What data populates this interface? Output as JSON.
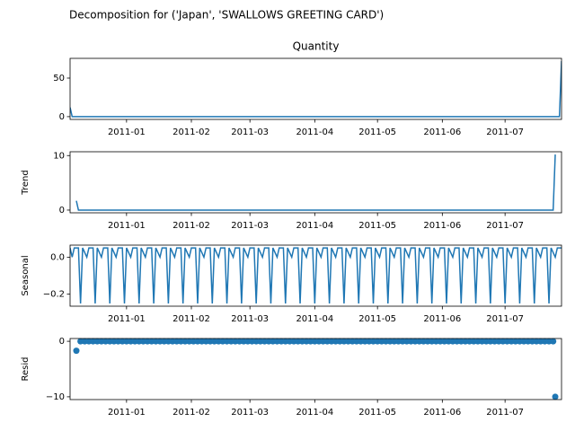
{
  "title": "Decomposition for ('Japan', 'SWALLOWS GREETING CARD')",
  "chart_data": [
    {
      "type": "line",
      "title": "Quantity",
      "color": "#1f77b4",
      "x": [
        0,
        1,
        234,
        235
      ],
      "values": [
        12,
        0,
        0,
        72
      ],
      "xlim": [
        0,
        235
      ],
      "xticks": [
        {
          "value": 27,
          "label": "2011-01"
        },
        {
          "value": 58,
          "label": "2011-02"
        },
        {
          "value": 86,
          "label": "2011-03"
        },
        {
          "value": 117,
          "label": "2011-04"
        },
        {
          "value": 147,
          "label": "2011-05"
        },
        {
          "value": 178,
          "label": "2011-06"
        },
        {
          "value": 208,
          "label": "2011-07"
        }
      ],
      "ylim": [
        -3.6,
        75.6
      ],
      "yticks": [
        0,
        50
      ]
    },
    {
      "type": "line",
      "ylabel": "Trend",
      "color": "#1f77b4",
      "x": [
        3,
        4,
        231,
        232
      ],
      "values": [
        1.7,
        0,
        0,
        10.2
      ],
      "xlim": [
        0,
        235
      ],
      "xticks": [
        {
          "value": 27,
          "label": "2011-01"
        },
        {
          "value": 58,
          "label": "2011-02"
        },
        {
          "value": 86,
          "label": "2011-03"
        },
        {
          "value": 117,
          "label": "2011-04"
        },
        {
          "value": 147,
          "label": "2011-05"
        },
        {
          "value": 178,
          "label": "2011-06"
        },
        {
          "value": 208,
          "label": "2011-07"
        }
      ],
      "ylim": [
        -0.5,
        10.7
      ],
      "yticks": [
        0,
        10
      ]
    },
    {
      "type": "line",
      "ylabel": "Seasonal",
      "color": "#1f77b4",
      "x": [
        0,
        1,
        2,
        4,
        5,
        6,
        8,
        9,
        11,
        12,
        13,
        15,
        16,
        18,
        19,
        20,
        22,
        23,
        25,
        26,
        27,
        29,
        30,
        32,
        33,
        34,
        36,
        37,
        39,
        40,
        41,
        43,
        44,
        46,
        47,
        48,
        50,
        51,
        53,
        54,
        55,
        57,
        58,
        60,
        61,
        62,
        64,
        65,
        67,
        68,
        69,
        71,
        72,
        74,
        75,
        76,
        78,
        79,
        81,
        82,
        83,
        85,
        86,
        88,
        89,
        90,
        92,
        93,
        95,
        96,
        97,
        99,
        100,
        102,
        103,
        104,
        106,
        107,
        109,
        110,
        111,
        113,
        114,
        116,
        117,
        118,
        120,
        121,
        123,
        124,
        125,
        127,
        128,
        130,
        131,
        132,
        134,
        135,
        137,
        138,
        139,
        141,
        142,
        144,
        145,
        146,
        148,
        149,
        151,
        152,
        153,
        155,
        156,
        158,
        159,
        160,
        162,
        163,
        165,
        166,
        167,
        169,
        170,
        172,
        173,
        174,
        176,
        177,
        179,
        180,
        181,
        183,
        184,
        186,
        187,
        188,
        190,
        191,
        193,
        194,
        195,
        197,
        198,
        200,
        201,
        202,
        204,
        205,
        207,
        208,
        209,
        211,
        212,
        214,
        215,
        216,
        218,
        219,
        221,
        222,
        223,
        225,
        226,
        228,
        229,
        230,
        232,
        233,
        235
      ],
      "values": [
        0.05,
        0,
        0.05,
        0.05,
        -0.25,
        0.05,
        0,
        0.05,
        0.05,
        -0.25,
        0.05,
        0,
        0.05,
        0.05,
        -0.25,
        0.05,
        0,
        0.05,
        0.05,
        -0.25,
        0.05,
        0,
        0.05,
        0.05,
        -0.25,
        0.05,
        0,
        0.05,
        0.05,
        -0.25,
        0.05,
        0,
        0.05,
        0.05,
        -0.25,
        0.05,
        0,
        0.05,
        0.05,
        -0.25,
        0.05,
        0,
        0.05,
        0.05,
        -0.25,
        0.05,
        0,
        0.05,
        0.05,
        -0.25,
        0.05,
        0,
        0.05,
        0.05,
        -0.25,
        0.05,
        0,
        0.05,
        0.05,
        -0.25,
        0.05,
        0,
        0.05,
        0.05,
        -0.25,
        0.05,
        0,
        0.05,
        0.05,
        -0.25,
        0.05,
        0,
        0.05,
        0.05,
        -0.25,
        0.05,
        0,
        0.05,
        0.05,
        -0.25,
        0.05,
        0,
        0.05,
        0.05,
        -0.25,
        0.05,
        0,
        0.05,
        0.05,
        -0.25,
        0.05,
        0,
        0.05,
        0.05,
        -0.25,
        0.05,
        0,
        0.05,
        0.05,
        -0.25,
        0.05,
        0,
        0.05,
        0.05,
        -0.25,
        0.05,
        0,
        0.05,
        0.05,
        -0.25,
        0.05,
        0,
        0.05,
        0.05,
        -0.25,
        0.05,
        0,
        0.05,
        0.05,
        -0.25,
        0.05,
        0,
        0.05,
        0.05,
        -0.25,
        0.05,
        0,
        0.05,
        0.05,
        -0.25,
        0.05,
        0,
        0.05,
        0.05,
        -0.25,
        0.05,
        0,
        0.05,
        0.05,
        -0.25,
        0.05,
        0,
        0.05,
        0.05,
        -0.25,
        0.05,
        0,
        0.05,
        0.05,
        -0.25,
        0.05,
        0,
        0.05,
        0.05,
        -0.25,
        0.05,
        0,
        0.05,
        0.05,
        -0.25,
        0.05,
        0,
        0.05,
        0.05,
        -0.25,
        0.05,
        0,
        0.05,
        0.05
      ],
      "xlim": [
        0,
        235
      ],
      "xticks": [
        {
          "value": 27,
          "label": "2011-01"
        },
        {
          "value": 58,
          "label": "2011-02"
        },
        {
          "value": 86,
          "label": "2011-03"
        },
        {
          "value": 117,
          "label": "2011-04"
        },
        {
          "value": 147,
          "label": "2011-05"
        },
        {
          "value": 178,
          "label": "2011-06"
        },
        {
          "value": 208,
          "label": "2011-07"
        }
      ],
      "ylim": [
        -0.265,
        0.065
      ],
      "yticks": [
        {
          "value": 0,
          "label": "0.0"
        },
        {
          "value": -0.2,
          "label": "−0.2"
        }
      ]
    },
    {
      "type": "scatter",
      "ylabel": "Resid",
      "color": "#1f77b4",
      "x": [
        3,
        5,
        7,
        9,
        11,
        13,
        15,
        17,
        19,
        21,
        23,
        25,
        27,
        29,
        31,
        33,
        35,
        37,
        39,
        41,
        43,
        45,
        47,
        49,
        51,
        53,
        55,
        57,
        59,
        61,
        63,
        65,
        67,
        69,
        71,
        73,
        75,
        77,
        79,
        81,
        83,
        85,
        87,
        89,
        91,
        93,
        95,
        97,
        99,
        101,
        103,
        105,
        107,
        109,
        111,
        113,
        115,
        117,
        119,
        121,
        123,
        125,
        127,
        129,
        131,
        133,
        135,
        137,
        139,
        141,
        143,
        145,
        147,
        149,
        151,
        153,
        155,
        157,
        159,
        161,
        163,
        165,
        167,
        169,
        171,
        173,
        175,
        177,
        179,
        181,
        183,
        185,
        187,
        189,
        191,
        193,
        195,
        197,
        199,
        201,
        203,
        205,
        207,
        209,
        211,
        213,
        215,
        217,
        219,
        221,
        223,
        225,
        227,
        229,
        231,
        232
      ],
      "values": [
        -1.7,
        0,
        0,
        0,
        0,
        0,
        0,
        0,
        0,
        0,
        0,
        0,
        0,
        0,
        0,
        0,
        0,
        0,
        0,
        0,
        0,
        0,
        0,
        0,
        0,
        0,
        0,
        0,
        0,
        0,
        0,
        0,
        0,
        0,
        0,
        0,
        0,
        0,
        0,
        0,
        0,
        0,
        0,
        0,
        0,
        0,
        0,
        0,
        0,
        0,
        0,
        0,
        0,
        0,
        0,
        0,
        0,
        0,
        0,
        0,
        0,
        0,
        0,
        0,
        0,
        0,
        0,
        0,
        0,
        0,
        0,
        0,
        0,
        0,
        0,
        0,
        0,
        0,
        0,
        0,
        0,
        0,
        0,
        0,
        0,
        0,
        0,
        0,
        0,
        0,
        0,
        0,
        0,
        0,
        0,
        0,
        0,
        0,
        0,
        0,
        0,
        0,
        0,
        0,
        0,
        0,
        0,
        0,
        0,
        0,
        0,
        0,
        0,
        0,
        0,
        -10
      ],
      "xlim": [
        0,
        235
      ],
      "xticks": [
        {
          "value": 27,
          "label": "2011-01"
        },
        {
          "value": 58,
          "label": "2011-02"
        },
        {
          "value": 86,
          "label": "2011-03"
        },
        {
          "value": 117,
          "label": "2011-04"
        },
        {
          "value": 147,
          "label": "2011-05"
        },
        {
          "value": 178,
          "label": "2011-06"
        },
        {
          "value": 208,
          "label": "2011-07"
        }
      ],
      "ylim": [
        -10.5,
        0.5
      ],
      "yticks": [
        0,
        {
          "value": -10,
          "label": "−10"
        }
      ]
    }
  ]
}
